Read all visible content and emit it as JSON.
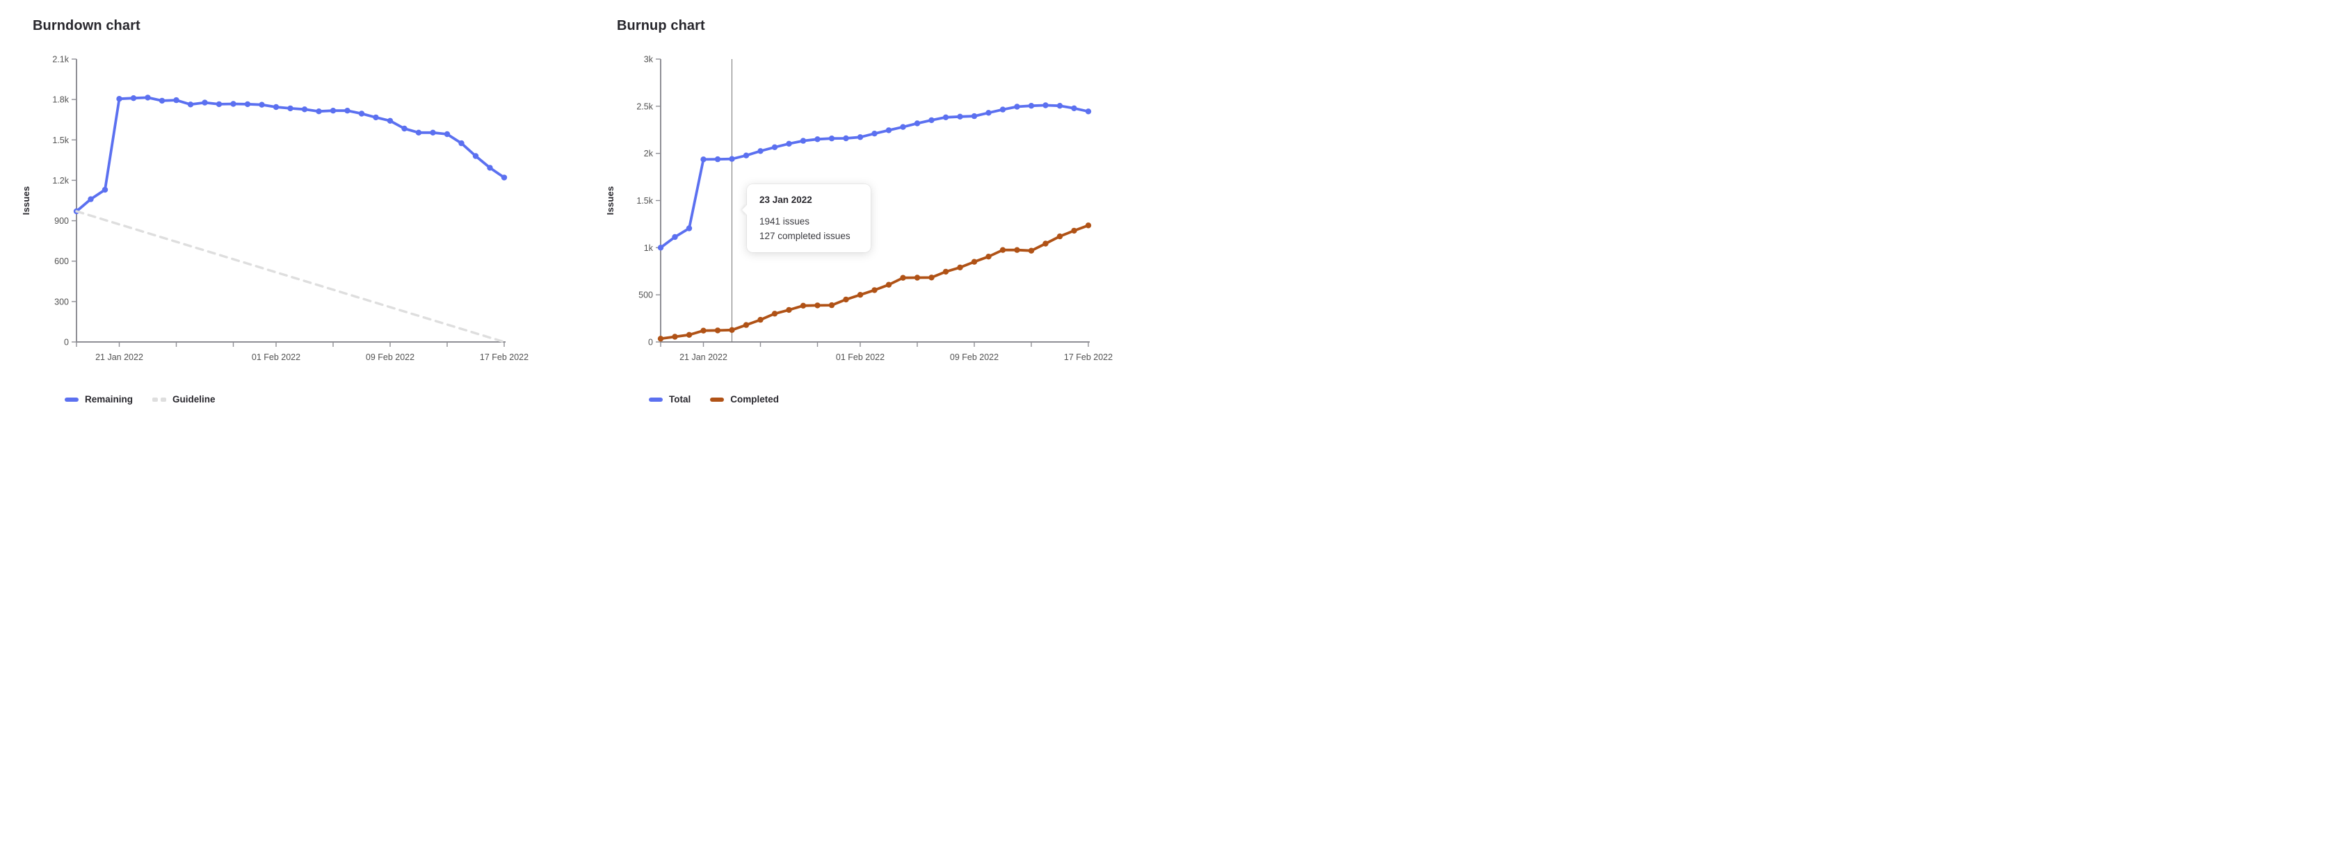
{
  "theme": {
    "series_blue": "#5b70f0",
    "series_orange": "#b05216",
    "guideline_gray": "#dedede",
    "axis": "#8f8f95",
    "crosshair": "#737373",
    "tick_text": "#525252",
    "heading_text": "#28272d",
    "tooltip_bg": "#ffffff"
  },
  "chart_data": [
    {
      "type": "line",
      "title": "Burndown chart",
      "ylabel": "Issues",
      "ylim": [
        0,
        2100
      ],
      "grid": false,
      "legend_position": "bottom-left",
      "x": [
        "18 Jan 2022",
        "19 Jan 2022",
        "20 Jan 2022",
        "21 Jan 2022",
        "22 Jan 2022",
        "23 Jan 2022",
        "24 Jan 2022",
        "25 Jan 2022",
        "26 Jan 2022",
        "27 Jan 2022",
        "28 Jan 2022",
        "29 Jan 2022",
        "30 Jan 2022",
        "31 Jan 2022",
        "01 Feb 2022",
        "02 Feb 2022",
        "03 Feb 2022",
        "04 Feb 2022",
        "05 Feb 2022",
        "06 Feb 2022",
        "07 Feb 2022",
        "08 Feb 2022",
        "09 Feb 2022",
        "10 Feb 2022",
        "11 Feb 2022",
        "12 Feb 2022",
        "13 Feb 2022",
        "14 Feb 2022",
        "15 Feb 2022",
        "16 Feb 2022",
        "17 Feb 2022"
      ],
      "x_tick_labels": {
        "3": "21 Jan 2022",
        "14": "01 Feb 2022",
        "22": "09 Feb 2022",
        "30": "17 Feb 2022"
      },
      "x_minor_tick_indices": [
        0,
        3,
        7,
        11,
        14,
        18,
        22,
        26,
        30
      ],
      "y_ticks": [
        {
          "value": 0,
          "label": "0"
        },
        {
          "value": 300,
          "label": "300"
        },
        {
          "value": 600,
          "label": "600"
        },
        {
          "value": 900,
          "label": "900"
        },
        {
          "value": 1200,
          "label": "1.2k"
        },
        {
          "value": 1500,
          "label": "1.5k"
        },
        {
          "value": 1800,
          "label": "1.8k"
        },
        {
          "value": 2100,
          "label": "2.1k"
        }
      ],
      "series": [
        {
          "name": "Remaining",
          "color": "#5b70f0",
          "style": "solid",
          "show_points": true,
          "values": [
            970,
            1060,
            1130,
            1805,
            1810,
            1814,
            1791,
            1795,
            1763,
            1777,
            1765,
            1767,
            1765,
            1761,
            1744,
            1734,
            1727,
            1712,
            1717,
            1717,
            1695,
            1667,
            1642,
            1584,
            1554,
            1554,
            1543,
            1475,
            1380,
            1293,
            1221
          ]
        },
        {
          "name": "Guideline",
          "color": "#dedede",
          "style": "dashed",
          "show_points": false,
          "line": {
            "from_day": 0,
            "from_value": 970,
            "to_day": 30,
            "to_value": 0
          }
        }
      ]
    },
    {
      "type": "line",
      "title": "Burnup chart",
      "ylabel": "Issues",
      "ylim": [
        0,
        3000
      ],
      "grid": false,
      "legend_position": "bottom-left",
      "x": [
        "18 Jan 2022",
        "19 Jan 2022",
        "20 Jan 2022",
        "21 Jan 2022",
        "22 Jan 2022",
        "23 Jan 2022",
        "24 Jan 2022",
        "25 Jan 2022",
        "26 Jan 2022",
        "27 Jan 2022",
        "28 Jan 2022",
        "29 Jan 2022",
        "30 Jan 2022",
        "31 Jan 2022",
        "01 Feb 2022",
        "02 Feb 2022",
        "03 Feb 2022",
        "04 Feb 2022",
        "05 Feb 2022",
        "06 Feb 2022",
        "07 Feb 2022",
        "08 Feb 2022",
        "09 Feb 2022",
        "10 Feb 2022",
        "11 Feb 2022",
        "12 Feb 2022",
        "13 Feb 2022",
        "14 Feb 2022",
        "15 Feb 2022",
        "16 Feb 2022",
        "17 Feb 2022"
      ],
      "x_tick_labels": {
        "3": "21 Jan 2022",
        "14": "01 Feb 2022",
        "22": "09 Feb 2022",
        "30": "17 Feb 2022"
      },
      "x_minor_tick_indices": [
        0,
        3,
        7,
        11,
        14,
        18,
        22,
        26,
        30
      ],
      "y_ticks": [
        {
          "value": 0,
          "label": "0"
        },
        {
          "value": 500,
          "label": "500"
        },
        {
          "value": 1000,
          "label": "1k"
        },
        {
          "value": 1500,
          "label": "1.5k"
        },
        {
          "value": 2000,
          "label": "2k"
        },
        {
          "value": 2500,
          "label": "2.5k"
        },
        {
          "value": 3000,
          "label": "3k"
        }
      ],
      "crosshair_day_index": 5,
      "tooltip": {
        "date": "23 Jan 2022",
        "total_label": "1941 issues",
        "completed_label": "127 completed issues"
      },
      "series": [
        {
          "name": "Total",
          "color": "#5b70f0",
          "style": "solid",
          "show_points": true,
          "values": [
            1000,
            1113,
            1205,
            1936,
            1938,
            1941,
            1978,
            2025,
            2065,
            2102,
            2133,
            2150,
            2158,
            2160,
            2172,
            2210,
            2245,
            2280,
            2318,
            2352,
            2382,
            2390,
            2395,
            2430,
            2465,
            2495,
            2505,
            2510,
            2505,
            2478,
            2445
          ]
        },
        {
          "name": "Completed",
          "color": "#b05216",
          "style": "solid",
          "show_points": true,
          "values": [
            35,
            55,
            75,
            120,
            122,
            127,
            180,
            235,
            300,
            340,
            385,
            388,
            390,
            450,
            500,
            550,
            607,
            680,
            682,
            683,
            745,
            790,
            850,
            905,
            975,
            975,
            968,
            1043,
            1120,
            1180,
            1236
          ]
        }
      ]
    }
  ]
}
